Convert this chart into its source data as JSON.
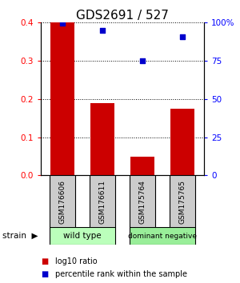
{
  "title": "GDS2691 / 527",
  "samples": [
    "GSM176606",
    "GSM176611",
    "GSM175764",
    "GSM175765"
  ],
  "log10_ratio": [
    0.4,
    0.19,
    0.05,
    0.175
  ],
  "percentile_rank": [
    99.5,
    95.0,
    75.0,
    91.0
  ],
  "ylim_left": [
    0,
    0.4
  ],
  "ylim_right": [
    0,
    100
  ],
  "yticks_left": [
    0,
    0.1,
    0.2,
    0.3,
    0.4
  ],
  "yticks_right": [
    0,
    25,
    50,
    75,
    100
  ],
  "yticklabels_right": [
    "0",
    "25",
    "50",
    "75",
    "100%"
  ],
  "bar_color": "#cc0000",
  "dot_color": "#0000cc",
  "groups": [
    {
      "label": "wild type",
      "indices": [
        0,
        1
      ],
      "color": "#bbffbb"
    },
    {
      "label": "dominant negative",
      "indices": [
        2,
        3
      ],
      "color": "#99ee99"
    }
  ],
  "sample_box_color": "#cccccc",
  "legend_red_label": "log10 ratio",
  "legend_blue_label": "percentile rank within the sample",
  "title_fontsize": 11,
  "bar_width": 0.6
}
